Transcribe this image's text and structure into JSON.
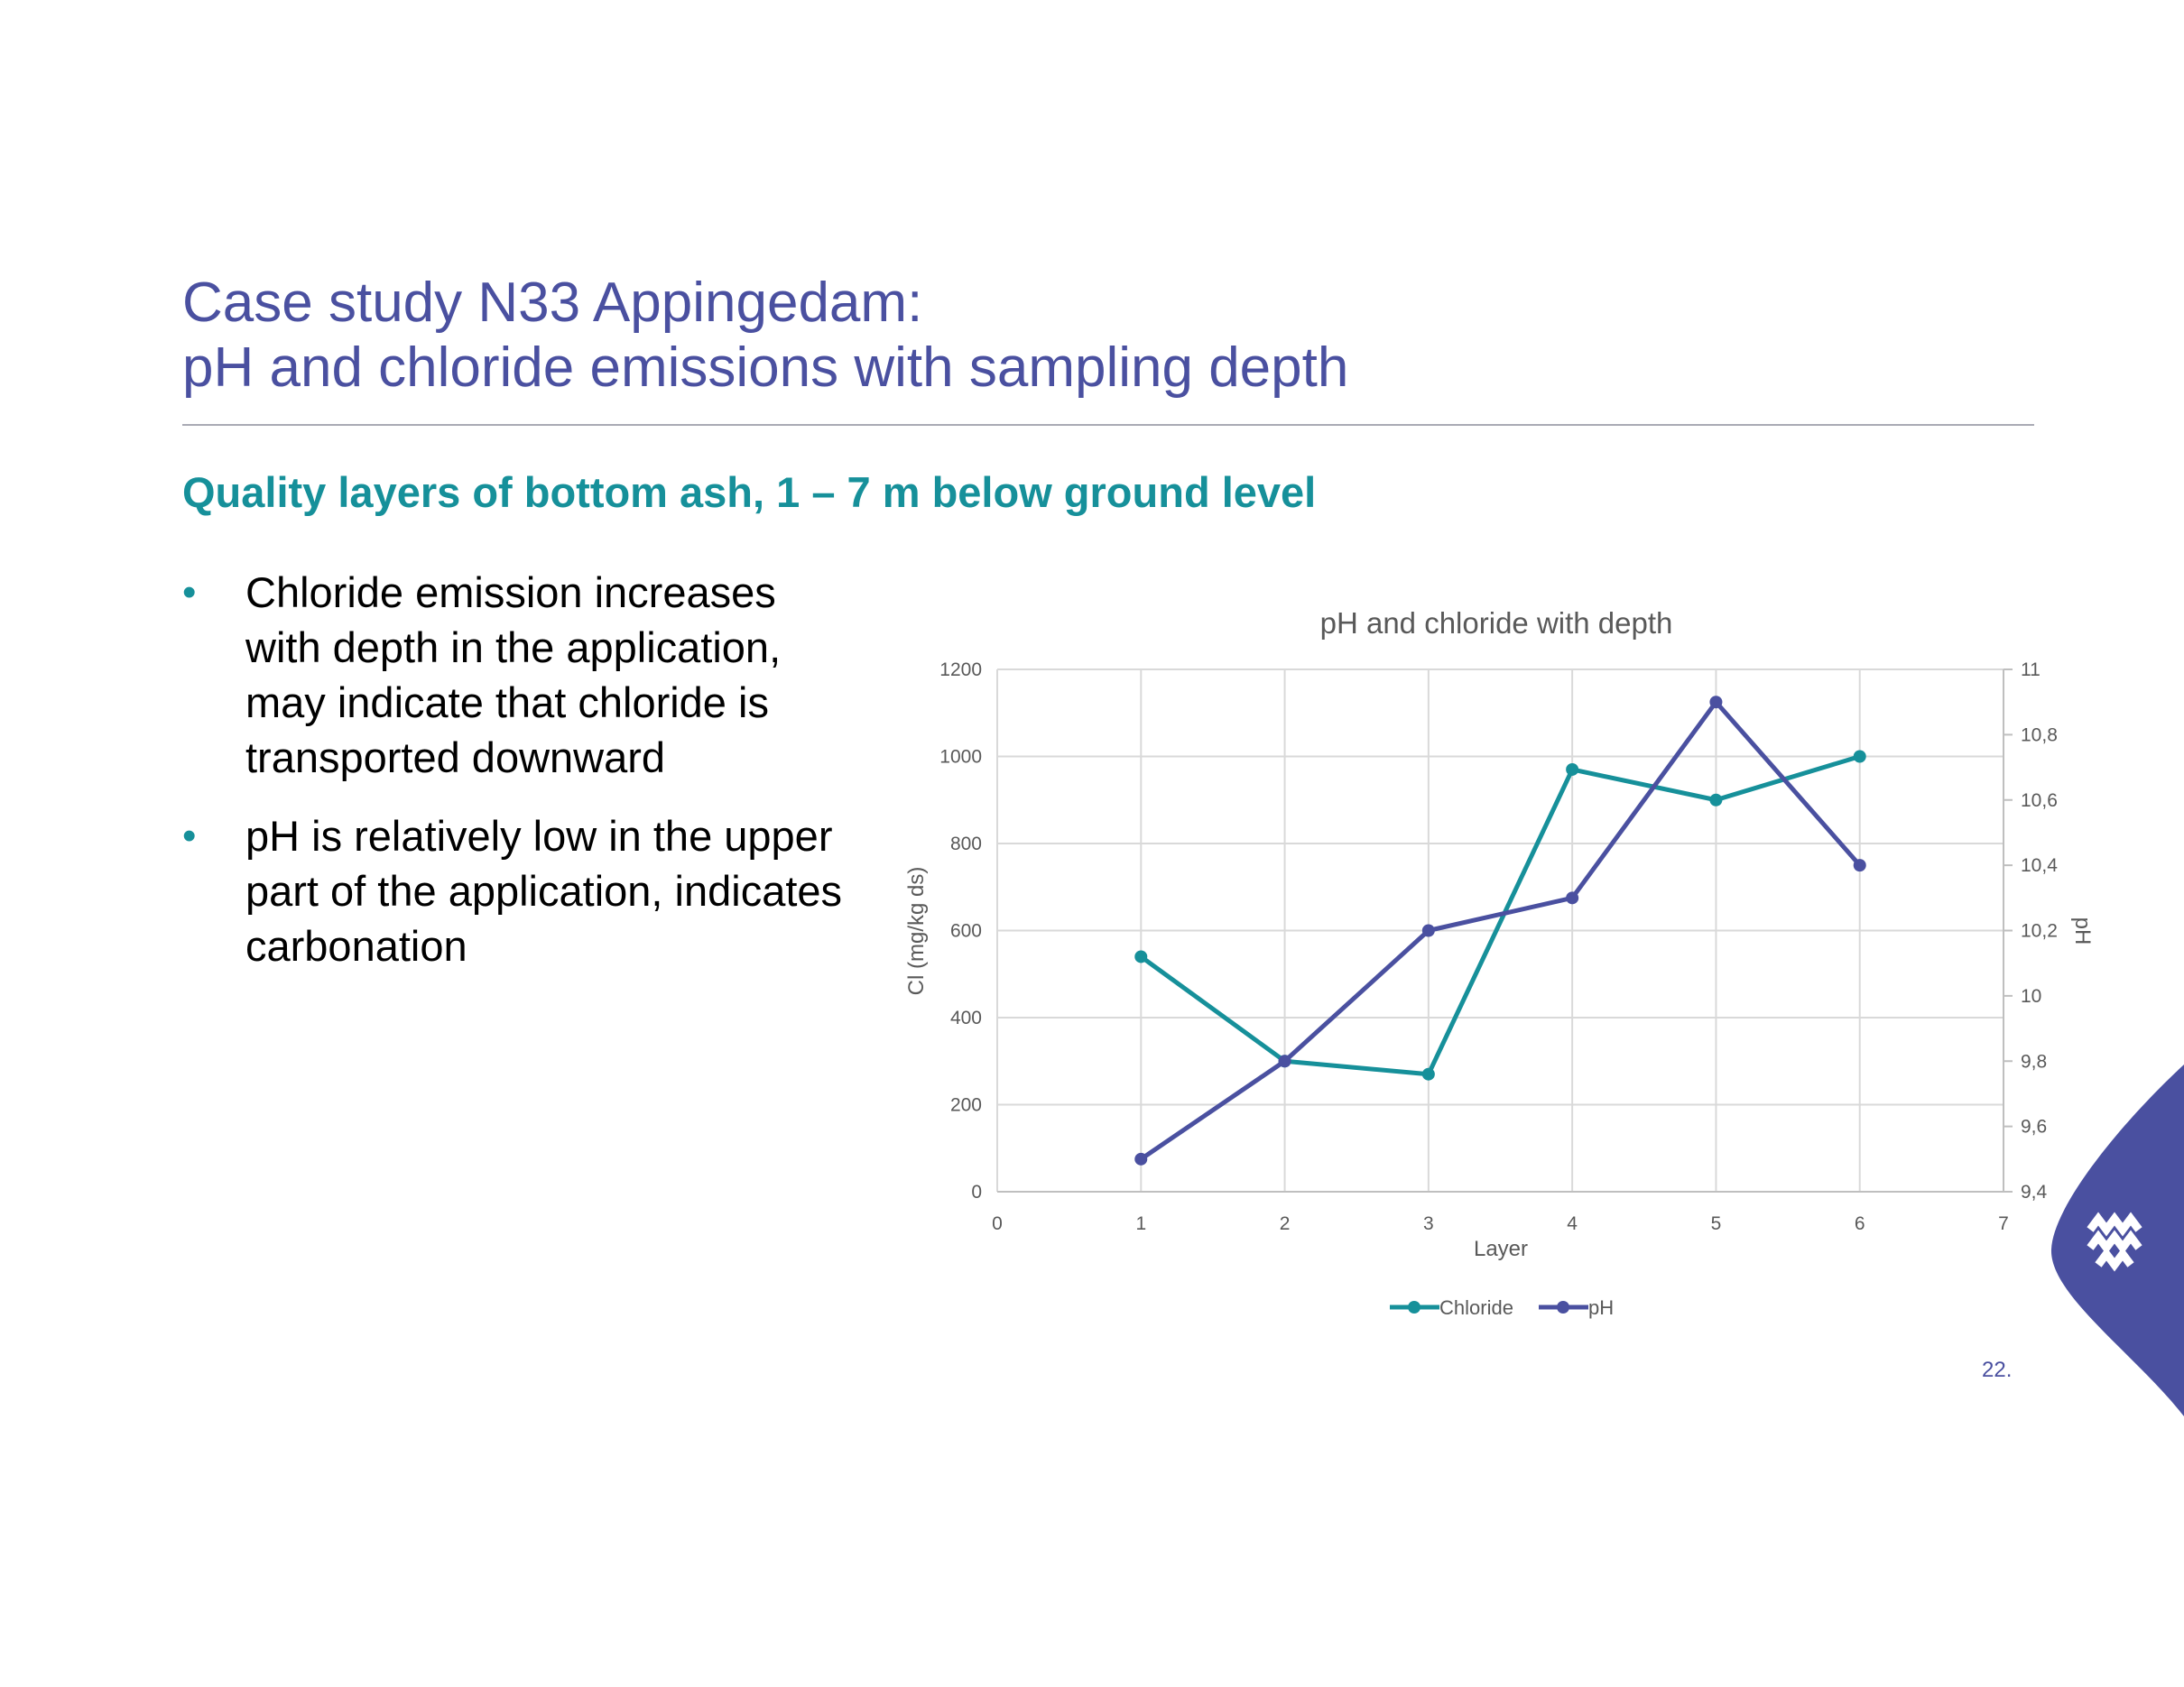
{
  "slide": {
    "title_line1": "Case study N33 Appingedam:",
    "title_line2": "pH and chloride emissions with sampling depth",
    "subtitle": "Quality layers of bottom ash, 1 – 7 m below ground level",
    "bullets": [
      "Chloride emission increases with depth in the application, may indicate that chloride is transported downward",
      "pH is relatively low in the upper part of the application, indicates carbonation"
    ],
    "bullet_symbol": "•",
    "page_number": "22.",
    "colors": {
      "title": "#4a50a0",
      "subtitle": "#16909a",
      "bullet": "#16909a",
      "brand": "#4a50a0"
    },
    "logo_icon": "waves-logo-icon"
  },
  "chart_data": {
    "type": "line",
    "title": "pH and chloride with depth",
    "xlabel": "Layer",
    "ylabel": "Cl (mg/kg ds)",
    "y2label": "pH",
    "xlim": [
      0,
      7
    ],
    "ylim": [
      0,
      1200
    ],
    "y2lim": [
      9.4,
      11
    ],
    "x_ticks": [
      "0",
      "1",
      "2",
      "3",
      "4",
      "5",
      "6",
      "7"
    ],
    "y_ticks": [
      "0",
      "200",
      "400",
      "600",
      "800",
      "1000",
      "1200"
    ],
    "y2_ticks": [
      "9,4",
      "9,6",
      "9,8",
      "10",
      "10,2",
      "10,4",
      "10,6",
      "10,8",
      "11"
    ],
    "grid": true,
    "legend_position": "bottom",
    "series": [
      {
        "name": "Chloride",
        "axis": "left",
        "color": "#16909a",
        "x": [
          1,
          2,
          3,
          4,
          5,
          6
        ],
        "values": [
          540,
          300,
          270,
          970,
          900,
          1000
        ]
      },
      {
        "name": "pH",
        "axis": "right",
        "color": "#4a50a0",
        "x": [
          1,
          2,
          3,
          4,
          5,
          6
        ],
        "values": [
          9.5,
          9.8,
          10.2,
          10.3,
          10.9,
          10.4
        ]
      }
    ]
  }
}
